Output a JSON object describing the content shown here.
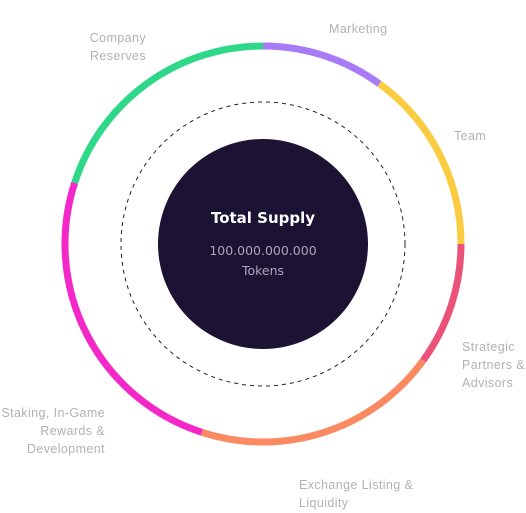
{
  "chart_data": {
    "type": "pie",
    "center": {
      "title": "Total Supply",
      "amount": "100.000.000.000",
      "unit": "Tokens"
    },
    "series": [
      {
        "name": "Marketing",
        "value": 10,
        "color": "#a87cf6"
      },
      {
        "name": "Team",
        "value": 15,
        "color": "#fccc40"
      },
      {
        "name": "Strategic\nPartners &\nAdvisors",
        "value": 10,
        "color": "#ea527a"
      },
      {
        "name": "Exchange Listing &\nLiquidity",
        "value": 20,
        "color": "#fb8a63"
      },
      {
        "name": "Staking, In-Game\nRewards &\nDevelopment",
        "value": 25,
        "color": "#f427c9"
      },
      {
        "name": "Company\nReserves",
        "value": 20,
        "color": "#2fd889"
      }
    ],
    "colors": {
      "center_fill": "#1c1233",
      "dashed_ring": "#222222",
      "label_text": "#b2b2b2"
    }
  }
}
